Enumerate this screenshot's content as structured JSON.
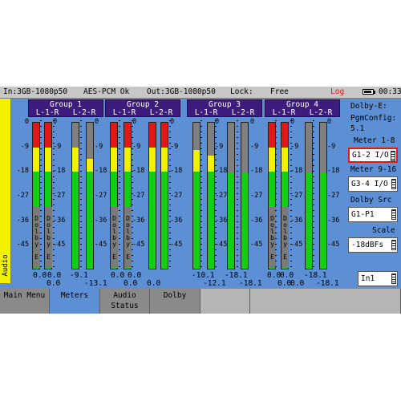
{
  "status": {
    "input": "In:3GB-1080p50",
    "audio": "AES-PCM Ok",
    "output": "Out:3GB-1080p50",
    "lock_label": "Lock:",
    "lock_value": "Free",
    "log": "Log",
    "time": "00:33",
    "battery_level": 0.85
  },
  "side_label": "Audio",
  "groups": [
    {
      "name": "Group 1",
      "channels": [
        "L-1-R",
        "L-2-R"
      ]
    },
    {
      "name": "Group 2",
      "channels": [
        "L-1-R",
        "L-2-R"
      ]
    },
    {
      "name": "Group 3",
      "channels": [
        "L-1-R",
        "L-2-R"
      ]
    },
    {
      "name": "Group 4",
      "channels": [
        "L-1-R",
        "L-2-R"
      ]
    }
  ],
  "scale_ticks": [
    "0",
    "-9",
    "-18",
    "-27",
    "-36",
    "-45"
  ],
  "scale_ticks_inner": [
    "0",
    "-9",
    "-18",
    "-27",
    "-36",
    "-45"
  ],
  "dolby_tag": "Dolby E",
  "meters": [
    {
      "level_db": 0,
      "peak": true
    },
    {
      "level_db": 0,
      "peak": true
    },
    {
      "level_db": -9.1,
      "peak": false
    },
    {
      "level_db": -13.1,
      "peak": false
    },
    {
      "level_db": 0,
      "peak": true
    },
    {
      "level_db": 0,
      "peak": true
    },
    {
      "level_db": 0,
      "peak": true
    },
    {
      "level_db": 0,
      "peak": true
    },
    {
      "level_db": -10.1,
      "peak": false
    },
    {
      "level_db": -12.1,
      "peak": false
    },
    {
      "level_db": -18.1,
      "peak": false
    },
    {
      "level_db": -18.1,
      "peak": false
    },
    {
      "level_db": 0,
      "peak": true
    },
    {
      "level_db": 0,
      "peak": true
    },
    {
      "level_db": -18.1,
      "peak": false
    },
    {
      "level_db": -18.1,
      "peak": false
    }
  ],
  "readouts_top": [
    "0.0",
    "0.0",
    "-9.1",
    "0.0",
    "0.0",
    "-10.1",
    "-18.1",
    "0.0",
    "0.0",
    "-18.1"
  ],
  "readouts_bottom": [
    "0.0",
    "-13.1",
    "0.0",
    "0.0",
    "-12.1",
    "-18.1",
    "0.0",
    "0.0",
    "-18.1"
  ],
  "right": {
    "dolby_e": "Dolby-E:",
    "pgm_config": "PgmConfig:",
    "pgm_value": "5.1",
    "meter_1_8_label": "Meter 1-8",
    "meter_1_8_value": "G1-2 I/O",
    "meter_9_16_label": "Meter 9-16",
    "meter_9_16_value": "G3-4 I/O",
    "dolby_src_label": "Dolby Src",
    "dolby_src_value": "G1-P1",
    "scale_label": "Scale",
    "scale_value": "-18dBFs",
    "input_value": "In1"
  },
  "tabs": [
    {
      "label": "Main Menu"
    },
    {
      "label": "Meters"
    },
    {
      "label": "Audio\nStatus"
    },
    {
      "label": "Dolby"
    },
    {
      "label": ""
    },
    {
      "label": ""
    }
  ],
  "colors": {
    "background": "#5d8fd4",
    "group_header": "#3d1c7e",
    "meter_green": "#12cf12",
    "meter_yellow": "#f2f200",
    "meter_red": "#e01818",
    "meter_empty": "#7f7f7f",
    "active_tab": "#5d8fd4",
    "active_selection": "#e01818"
  }
}
